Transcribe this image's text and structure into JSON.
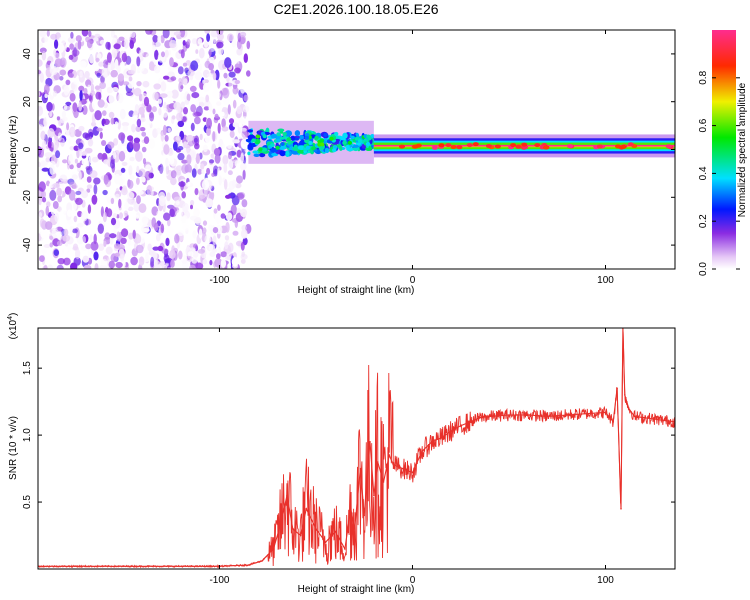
{
  "title": "C2E1.2026.100.18.05.E26",
  "chart_data": [
    {
      "type": "heatmap",
      "xlabel": "Height of straight line (km)",
      "ylabel": "Frequency (Hz)",
      "xlim": [
        -194,
        136
      ],
      "ylim": [
        -50,
        50
      ],
      "xticks": [
        -100,
        0,
        100
      ],
      "yticks": [
        -40,
        -20,
        0,
        20,
        40
      ],
      "colorbar": {
        "label": "Normalized spectral amplitude",
        "range": [
          0,
          1
        ],
        "ticks": [
          "0.0",
          "0.2",
          "0.4",
          "0.6",
          "0.8"
        ],
        "tick_values": [
          0.0,
          0.2,
          0.4,
          0.6,
          0.8
        ]
      },
      "regions": [
        {
          "name": "noise",
          "x_range": [
            -194,
            -85
          ],
          "freq_range": [
            -50,
            50
          ],
          "amplitude_range": [
            0.0,
            0.2
          ]
        },
        {
          "name": "signal-onset",
          "x_range": [
            -85,
            -20
          ],
          "freq_center": 3,
          "freq_halfwidth": 6,
          "amplitude_range": [
            0.3,
            0.6
          ]
        },
        {
          "name": "signal-steady",
          "x_range": [
            -20,
            136
          ],
          "freq_center": 1.5,
          "freq_halfwidth": 2,
          "amplitude_range": [
            0.8,
            1.0
          ]
        }
      ]
    },
    {
      "type": "line",
      "xlabel": "Height of straight line (km)",
      "ylabel": "SNR (10 * v/v)",
      "scale_label": "(x10",
      "scale_exponent": "4",
      "xlim": [
        -194,
        136
      ],
      "ylim": [
        0,
        1.8
      ],
      "xticks": [
        -100,
        0,
        100
      ],
      "yticks": [
        "0.5",
        "1.0",
        "1.5"
      ],
      "ytick_values": [
        0.5,
        1.0,
        1.5
      ],
      "series": [
        {
          "name": "SNR",
          "color": "#e8302a",
          "x": [
            -194,
            -150,
            -100,
            -85,
            -78,
            -72,
            -68,
            -65,
            -62,
            -58,
            -55,
            -50,
            -45,
            -40,
            -35,
            -32,
            -30,
            -27,
            -25,
            -22,
            -20,
            -18,
            -15,
            -12,
            -10,
            -5,
            0,
            5,
            10,
            15,
            20,
            25,
            30,
            35,
            40,
            50,
            60,
            70,
            80,
            90,
            100,
            104,
            106,
            108,
            109,
            110,
            112,
            115,
            120,
            125,
            130,
            136
          ],
          "values": [
            0.02,
            0.02,
            0.02,
            0.03,
            0.06,
            0.15,
            0.35,
            0.55,
            0.3,
            0.25,
            0.45,
            0.3,
            0.2,
            0.28,
            0.15,
            0.45,
            0.3,
            0.75,
            0.4,
            0.95,
            0.55,
            0.8,
            0.65,
            0.85,
            0.78,
            0.75,
            0.72,
            0.88,
            0.95,
            0.98,
            1.03,
            1.07,
            1.1,
            1.13,
            1.14,
            1.15,
            1.15,
            1.14,
            1.15,
            1.16,
            1.17,
            1.1,
            1.35,
            0.45,
            1.8,
            1.3,
            1.2,
            1.14,
            1.13,
            1.12,
            1.11,
            1.1
          ]
        }
      ]
    }
  ]
}
